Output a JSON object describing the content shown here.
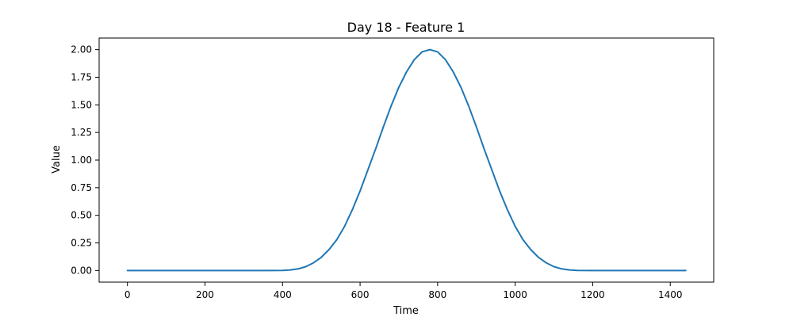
{
  "chart_data": {
    "type": "line",
    "title": "Day 18 - Feature 1",
    "xlabel": "Time",
    "ylabel": "Value",
    "xlim": [
      -73,
      1512
    ],
    "ylim": [
      -0.105,
      2.105
    ],
    "xticks": [
      0,
      200,
      400,
      600,
      800,
      1000,
      1200,
      1400
    ],
    "xtick_labels": [
      "0",
      "200",
      "400",
      "600",
      "800",
      "1000",
      "1200",
      "1400"
    ],
    "yticks": [
      0.0,
      0.25,
      0.5,
      0.75,
      1.0,
      1.25,
      1.5,
      1.75,
      2.0
    ],
    "ytick_labels": [
      "0.00",
      "0.25",
      "0.50",
      "0.75",
      "1.00",
      "1.25",
      "1.50",
      "1.75",
      "2.00"
    ],
    "grid": false,
    "colors": {
      "series": "#1f77b4",
      "axes": "#000000",
      "background": "#ffffff"
    },
    "series": [
      {
        "x": [
          0,
          100,
          200,
          300,
          360,
          400,
          420,
          440,
          460,
          480,
          500,
          520,
          540,
          560,
          580,
          600,
          620,
          640,
          660,
          680,
          700,
          720,
          740,
          760,
          780,
          800,
          820,
          840,
          860,
          880,
          900,
          920,
          940,
          960,
          980,
          1000,
          1020,
          1040,
          1060,
          1080,
          1100,
          1120,
          1140,
          1160,
          1200,
          1300,
          1440
        ],
        "values": [
          0.0,
          0.0,
          0.0,
          0.0,
          0.0,
          0.001,
          0.005,
          0.015,
          0.035,
          0.07,
          0.12,
          0.19,
          0.28,
          0.4,
          0.55,
          0.72,
          0.91,
          1.1,
          1.3,
          1.49,
          1.66,
          1.8,
          1.91,
          1.98,
          2.0,
          1.98,
          1.91,
          1.8,
          1.66,
          1.49,
          1.3,
          1.1,
          0.91,
          0.72,
          0.55,
          0.4,
          0.28,
          0.19,
          0.12,
          0.07,
          0.035,
          0.015,
          0.005,
          0.001,
          0.0,
          0.0,
          0.0
        ]
      }
    ]
  }
}
